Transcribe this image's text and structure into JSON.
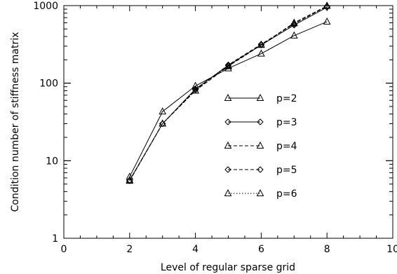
{
  "chart_data": {
    "type": "line",
    "xlabel": "Level of regular sparse grid",
    "ylabel": "Condition number of stiffness matrix",
    "xlim": [
      0,
      10
    ],
    "ylim": [
      1,
      1000
    ],
    "yscale": "log",
    "xticks": [
      0,
      2,
      4,
      6,
      8,
      10
    ],
    "yticks": [
      1,
      10,
      100,
      1000
    ],
    "legend_position": "center-right",
    "x": [
      2,
      3,
      4,
      5,
      6,
      7,
      8
    ],
    "series": [
      {
        "name": "p=2",
        "marker": "triangle",
        "linestyle": "solid",
        "values": [
          6.2,
          43,
          92,
          155,
          240,
          410,
          620
        ]
      },
      {
        "name": "p=3",
        "marker": "diamond",
        "linestyle": "solid",
        "values": [
          5.6,
          30,
          84,
          170,
          310,
          560,
          950
        ]
      },
      {
        "name": "p=4",
        "marker": "triangle",
        "linestyle": "dashed",
        "values": [
          5.6,
          30,
          80,
          165,
          310,
          600,
          990
        ]
      },
      {
        "name": "p=5",
        "marker": "diamond",
        "linestyle": "dashed",
        "values": [
          5.5,
          30,
          82,
          172,
          318,
          580,
          980
        ]
      },
      {
        "name": "p=6",
        "marker": "triangle",
        "linestyle": "dotted",
        "values": [
          5.5,
          30,
          80,
          168,
          312,
          590,
          990
        ]
      }
    ]
  }
}
